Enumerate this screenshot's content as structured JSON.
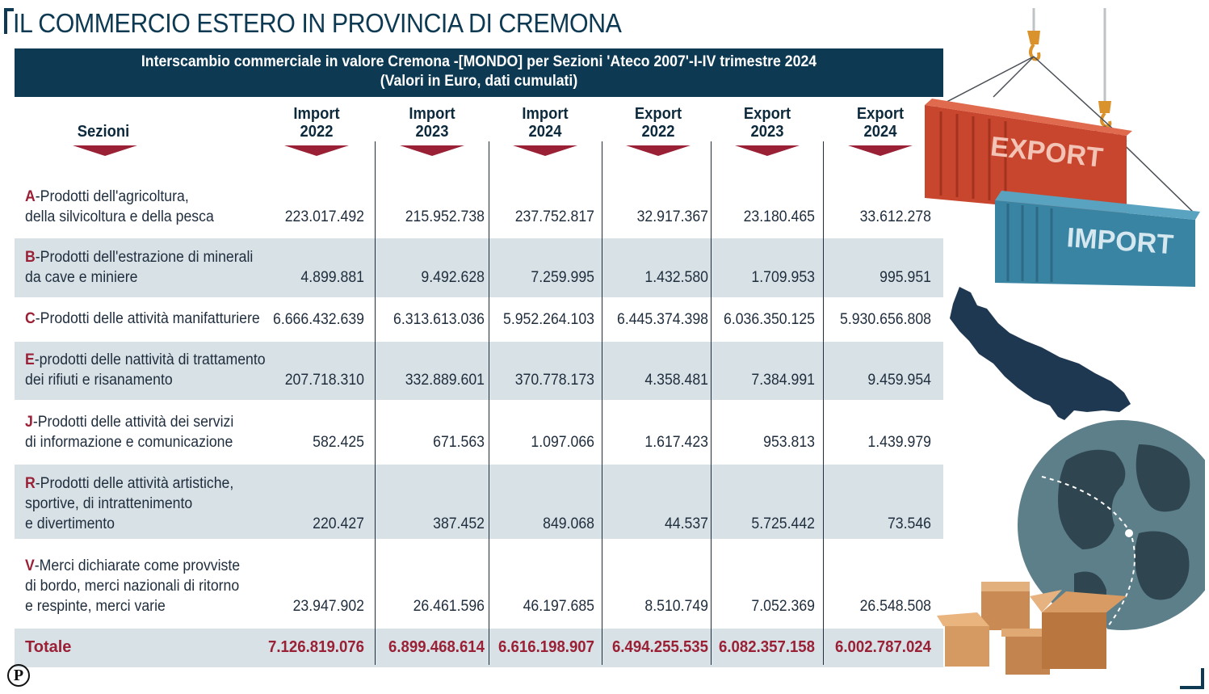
{
  "title": "IL COMMERCIO ESTERO IN PROVINCIA DI CREMONA",
  "banner": {
    "line1": "Interscambio commerciale in valore Cremona -[MONDO] per Sezioni 'Ateco 2007'-I-IV trimestre 2024",
    "line2": "(Valori in Euro, dati cumulati)"
  },
  "columns": {
    "sezioni": "Sezioni",
    "c1": {
      "l1": "Import",
      "l2": "2022"
    },
    "c2": {
      "l1": "Import",
      "l2": "2023"
    },
    "c3": {
      "l1": "Import",
      "l2": "2024"
    },
    "c4": {
      "l1": "Export",
      "l2": "2022"
    },
    "c5": {
      "l1": "Export",
      "l2": "2023"
    },
    "c6": {
      "l1": "Export",
      "l2": "2024"
    }
  },
  "rows": [
    {
      "letter": "A",
      "lines": [
        "-Prodotti dell'agricoltura,",
        "della silvicoltura e della pesca"
      ],
      "values": [
        "223.017.492",
        "215.952.738",
        "237.752.817",
        "32.917.367",
        "23.180.465",
        "33.612.278"
      ]
    },
    {
      "letter": "B",
      "lines": [
        "-Prodotti dell'estrazione di minerali",
        "da cave e miniere"
      ],
      "values": [
        "4.899.881",
        "9.492.628",
        "7.259.995",
        "1.432.580",
        "1.709.953",
        "995.951"
      ]
    },
    {
      "letter": "C",
      "lines": [
        "-Prodotti delle attività manifatturiere"
      ],
      "values": [
        "6.666.432.639",
        "6.313.613.036",
        "5.952.264.103",
        "6.445.374.398",
        "6.036.350.125",
        "5.930.656.808"
      ]
    },
    {
      "letter": "E",
      "lines": [
        "-prodotti delle nattività di trattamento",
        "dei rifiuti e risanamento"
      ],
      "values": [
        "207.718.310",
        "332.889.601",
        "370.778.173",
        "4.358.481",
        "7.384.991",
        "9.459.954"
      ]
    },
    {
      "letter": "J",
      "lines": [
        "-Prodotti delle attività dei servizi",
        "di informazione e comunicazione"
      ],
      "values": [
        "582.425",
        "671.563",
        "1.097.066",
        "1.617.423",
        "953.813",
        "1.439.979"
      ]
    },
    {
      "letter": "R",
      "lines": [
        "-Prodotti delle attività artistiche,",
        "sportive, di intrattenimento",
        "e divertimento"
      ],
      "values": [
        "220.427",
        "387.452",
        "849.068",
        "44.537",
        "5.725.442",
        "73.546"
      ]
    },
    {
      "letter": "V",
      "lines": [
        "-Merci dichiarate come provviste",
        "di bordo, merci nazionali di ritorno",
        "e respinte, merci varie"
      ],
      "values": [
        "23.947.902",
        "26.461.596",
        "46.197.685",
        "8.510.749",
        "7.052.369",
        "26.548.508"
      ]
    }
  ],
  "total": {
    "label": "Totale",
    "values": [
      "7.126.819.076",
      "6.899.468.614",
      "6.616.198.907",
      "6.494.255.535",
      "6.082.357.158",
      "6.002.787.024"
    ]
  },
  "illustration": {
    "export_text": "EXPORT",
    "import_text": "IMPORT",
    "export_color": "#c8452e",
    "import_color": "#3a84a3"
  },
  "publisher_logo_letter": "P",
  "colors": {
    "navy": "#0d3a52",
    "accent": "#9a2036",
    "row_shade": "#d7e1e6"
  }
}
